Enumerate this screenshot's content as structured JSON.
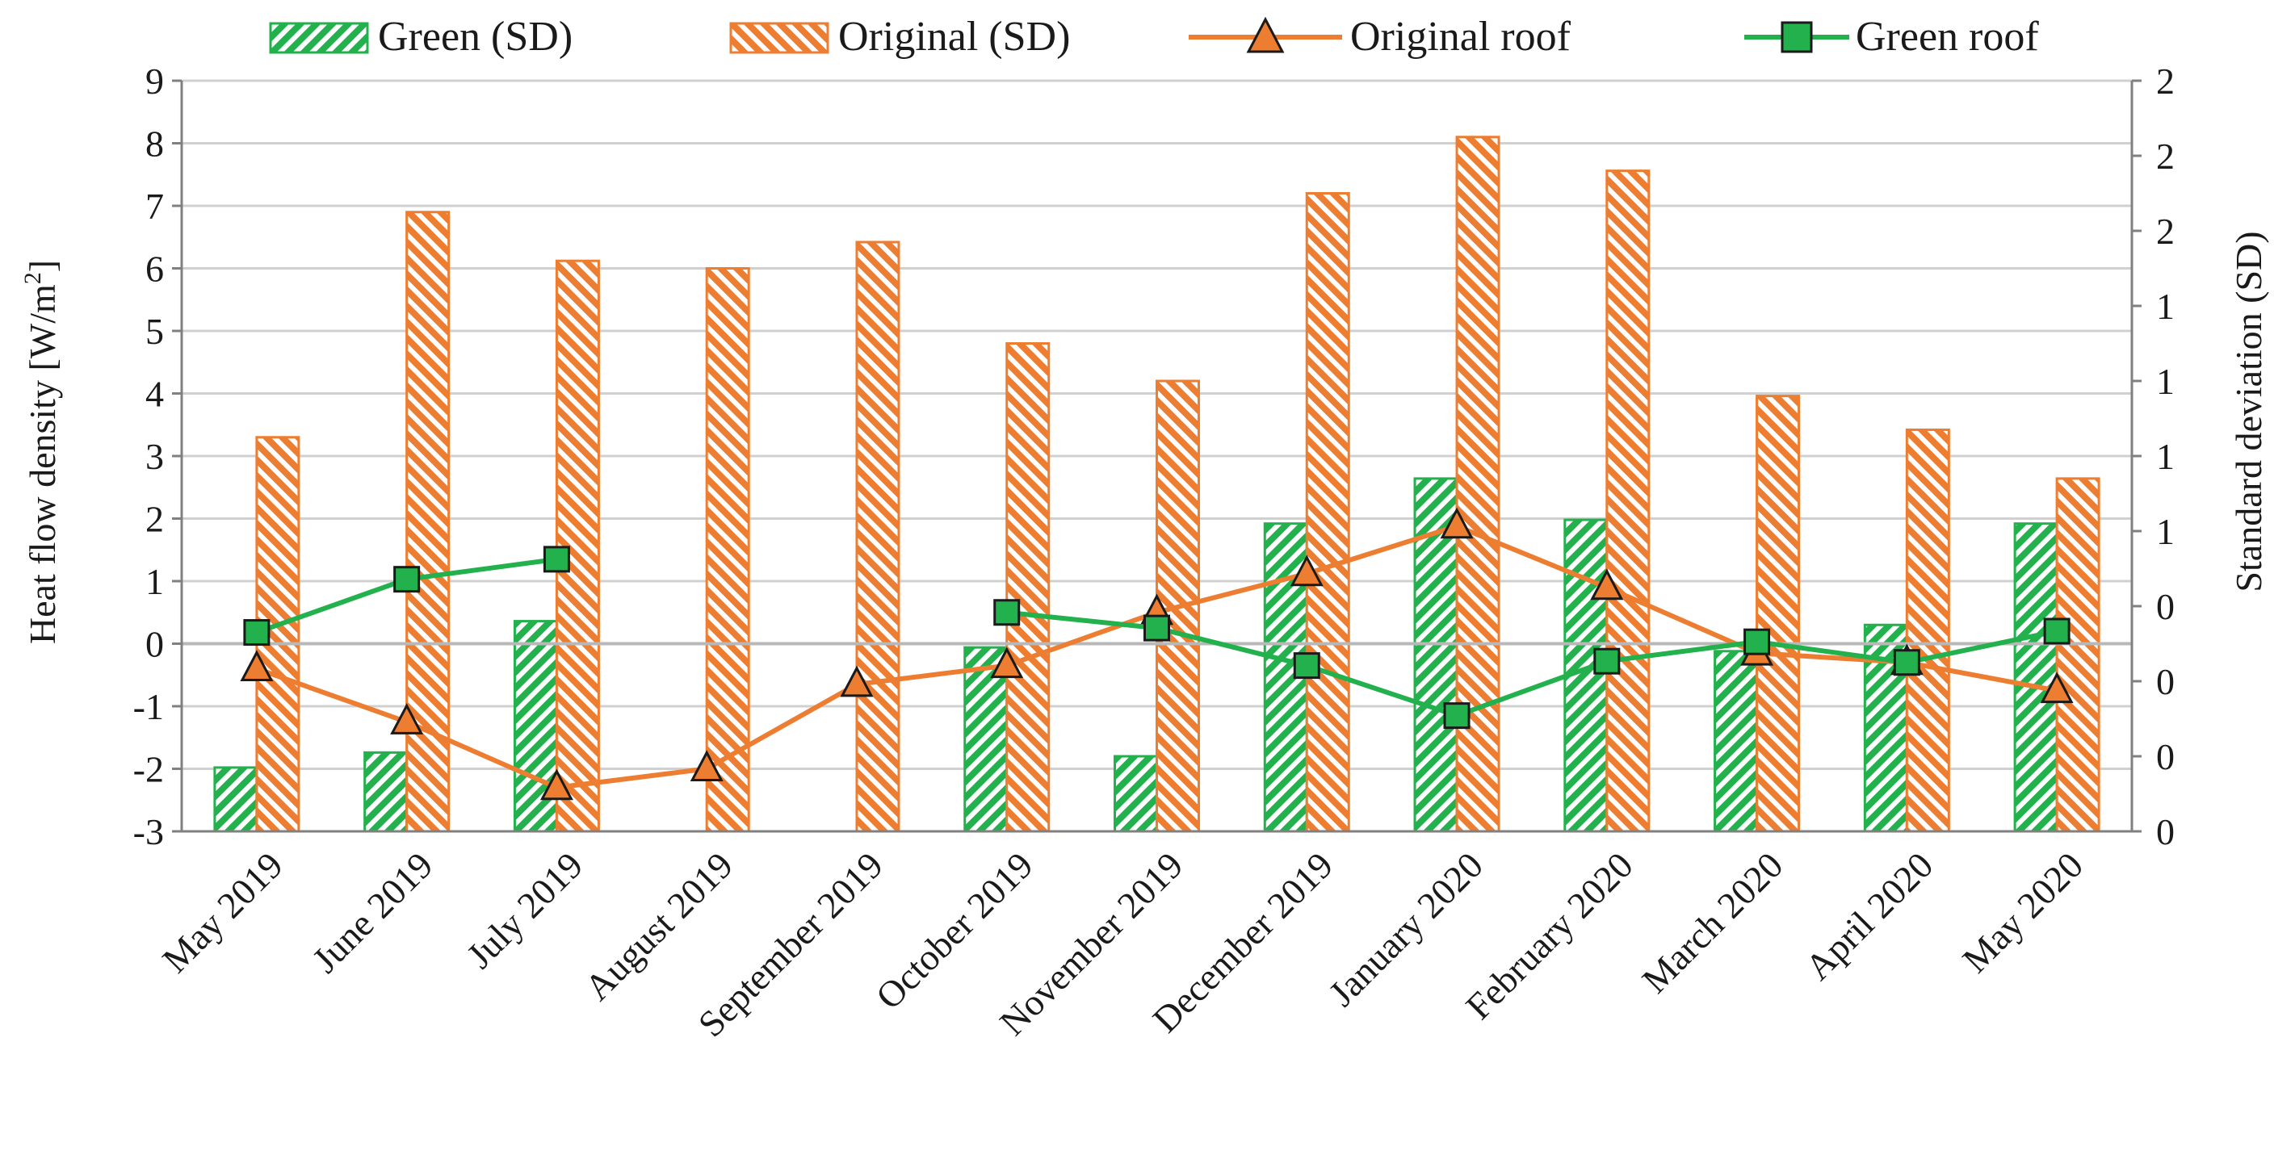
{
  "chart_data": {
    "type": "bar+line",
    "title": "",
    "categories": [
      "May 2019",
      "June 2019",
      "July 2019",
      "August 2019",
      "September 2019",
      "October 2019",
      "November 2019",
      "December 2019",
      "January 2020",
      "February 2020",
      "March 2020",
      "April 2020",
      "May 2020"
    ],
    "ylabel_left": "Heat flow density [W/m2]",
    "ylabel_left_base": "Heat flow density [W/m",
    "ylabel_left_sup": "2",
    "ylabel_left_end": "]",
    "ylabel_right": "Standard deviation (SD)",
    "ylim_left": [
      -3,
      9
    ],
    "yticks_left": [
      "9",
      "8",
      "7",
      "6",
      "5",
      "4",
      "3",
      "2",
      "1",
      "0",
      "-1",
      "-2",
      "-3"
    ],
    "ylim_right": [
      0,
      2
    ],
    "yticks_right": [
      "2",
      "2",
      "2",
      "1",
      "1",
      "1",
      "1",
      "0",
      "0",
      "0",
      "0"
    ],
    "legend": {
      "green_sd": "Green (SD)",
      "original_sd": "Original (SD)",
      "original_roof": "Original roof",
      "green_roof": "Green roof"
    },
    "series": [
      {
        "name": "Green (SD)",
        "kind": "bar",
        "axis": "right",
        "color": "#22b14c",
        "values": [
          0.17,
          0.21,
          0.56,
          null,
          null,
          0.49,
          0.2,
          0.82,
          0.94,
          0.83,
          0.48,
          0.55,
          0.82
        ]
      },
      {
        "name": "Original (SD)",
        "kind": "bar",
        "axis": "right",
        "color": "#ed7d31",
        "values": [
          1.05,
          1.65,
          1.52,
          1.5,
          1.57,
          1.3,
          1.2,
          1.7,
          1.85,
          1.76,
          1.16,
          1.07,
          0.94
        ]
      },
      {
        "name": "Original roof",
        "kind": "line",
        "axis": "left",
        "color": "#ed7d31",
        "marker": "triangle",
        "values": [
          -0.4,
          -1.25,
          -2.3,
          -2.0,
          -0.65,
          -0.35,
          0.5,
          1.12,
          1.88,
          0.9,
          -0.15,
          -0.3,
          -0.75
        ]
      },
      {
        "name": "Green roof",
        "kind": "line",
        "axis": "left",
        "color": "#22b14c",
        "marker": "square",
        "values": [
          0.18,
          1.03,
          1.35,
          null,
          null,
          0.5,
          0.25,
          -0.35,
          -1.15,
          -0.28,
          0.03,
          -0.3,
          0.2
        ]
      }
    ],
    "grid": true,
    "legend_position": "top"
  }
}
